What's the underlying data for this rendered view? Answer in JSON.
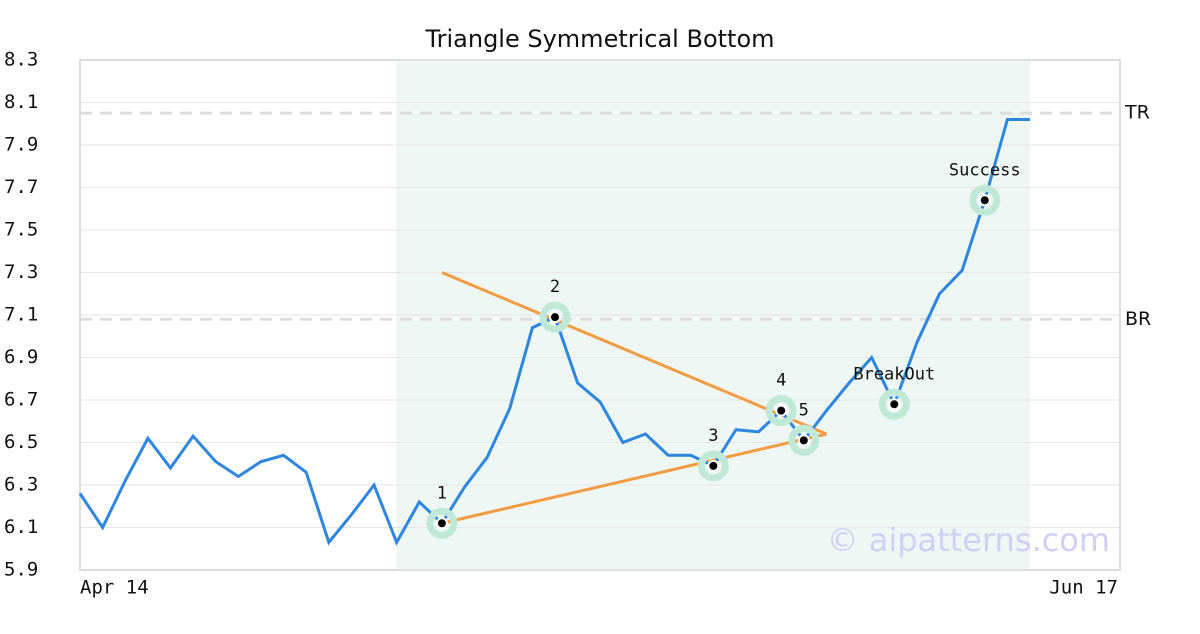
{
  "chart_data": {
    "type": "line",
    "title": "Triangle Symmetrical Bottom",
    "categories": [
      "Apr 14",
      null,
      null,
      null,
      null,
      null,
      null,
      null,
      null,
      null,
      null,
      null,
      null,
      null,
      null,
      null,
      null,
      null,
      null,
      null,
      null,
      null,
      null,
      null,
      null,
      null,
      null,
      null,
      null,
      null,
      null,
      null,
      null,
      null,
      null,
      null,
      null,
      null,
      null,
      null,
      null,
      null,
      null
    ],
    "end_label": "Jun 17",
    "values": [
      6.26,
      6.1,
      6.32,
      6.52,
      6.38,
      6.53,
      6.41,
      6.34,
      6.41,
      6.44,
      6.36,
      6.03,
      6.16,
      6.3,
      6.03,
      6.22,
      6.12,
      6.29,
      6.43,
      6.66,
      7.04,
      7.09,
      6.78,
      6.69,
      6.5,
      6.54,
      6.44,
      6.44,
      6.39,
      6.56,
      6.55,
      6.65,
      6.51,
      6.65,
      6.78,
      6.9,
      6.68,
      6.97,
      7.2,
      7.31,
      7.64,
      8.02,
      8.02
    ],
    "color": "#2e86de",
    "ylim": [
      5.9,
      8.3
    ],
    "yticks": [
      5.9,
      6.1,
      6.3,
      6.5,
      6.7,
      6.9,
      7.1,
      7.3,
      7.5,
      7.7,
      7.9,
      8.1,
      8.3
    ],
    "grid": true,
    "levels": [
      {
        "label": "TR",
        "value": 8.05
      },
      {
        "label": "BR",
        "value": 7.08
      }
    ],
    "trendlines": [
      {
        "from_index": 16,
        "from_value": 7.3,
        "to_index": 33,
        "to_value": 6.54
      },
      {
        "from_index": 16,
        "from_value": 6.12,
        "to_index": 33,
        "to_value": 6.54
      }
    ],
    "trend_color": "#f39c44",
    "markers": [
      {
        "label": "1",
        "index": 16
      },
      {
        "label": "2",
        "index": 21
      },
      {
        "label": "3",
        "index": 28
      },
      {
        "label": "4",
        "index": 31
      },
      {
        "label": "5",
        "index": 32
      },
      {
        "label": "BreakOut",
        "index": 36
      },
      {
        "label": "Success",
        "index": 40
      }
    ],
    "highlight_range": [
      14,
      42
    ],
    "watermark": "© aipatterns.com"
  }
}
